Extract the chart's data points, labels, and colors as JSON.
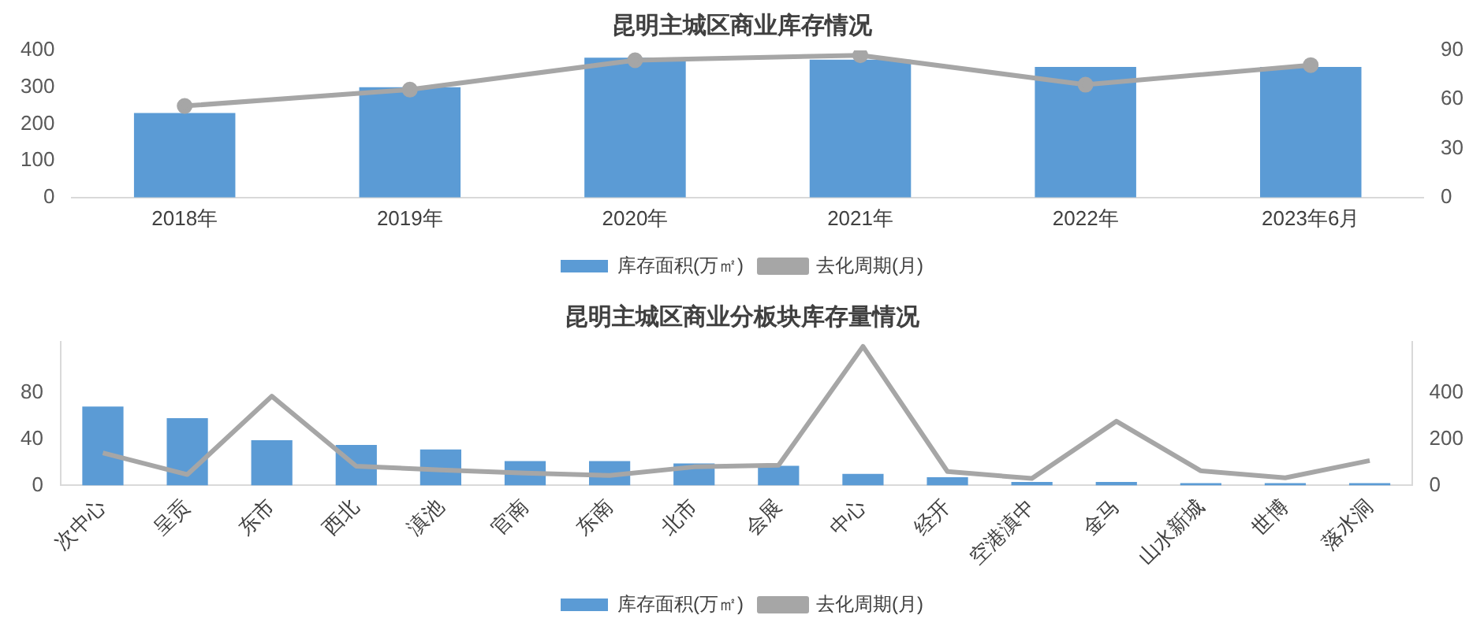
{
  "chart_data": [
    {
      "type": "bar",
      "title": "昆明主城区商业库存情况",
      "categories": [
        "2018年",
        "2019年",
        "2020年",
        "2021年",
        "2022年",
        "2023年6月"
      ],
      "ylim": [
        0,
        400
      ],
      "yticks": [
        0,
        100,
        200,
        300,
        400
      ],
      "y2lim": [
        0,
        90
      ],
      "y2ticks": [
        0,
        30,
        60,
        90
      ],
      "legend": "bottom",
      "grid": false,
      "series": [
        {
          "name": "库存面积(万㎡)",
          "color": "#5b9bd5",
          "values": [
            230,
            300,
            380,
            375,
            355,
            355
          ]
        },
        {
          "name": "去化周期(月)",
          "type": "line",
          "axis": "y2",
          "color": "#a6a6a6",
          "marker": "circle",
          "values": [
            56,
            66,
            84,
            87,
            69,
            81
          ]
        }
      ]
    },
    {
      "type": "bar",
      "title": "昆明主城区商业分板块库存量情况",
      "categories": [
        "次中心",
        "呈贡",
        "东市",
        "西北",
        "滇池",
        "官南",
        "东南",
        "北市",
        "会展",
        "中心",
        "经开",
        "空港滇中",
        "金马",
        "山水新城",
        "世博",
        "落水洞"
      ],
      "ylim": [
        0,
        124
      ],
      "yticks": [
        0,
        40,
        80
      ],
      "y2lim": [
        0,
        620
      ],
      "y2ticks": [
        0,
        200,
        400
      ],
      "legend": "bottom",
      "grid": false,
      "series": [
        {
          "name": "库存面积(万㎡)",
          "color": "#5b9bd5",
          "values": [
            68,
            58,
            39,
            35,
            31,
            21,
            21,
            19,
            17,
            10,
            7,
            3,
            3,
            2,
            2,
            2
          ]
        },
        {
          "name": "去化周期(月)",
          "type": "line",
          "axis": "y2",
          "color": "#a6a6a6",
          "marker": "none",
          "values": [
            140,
            47,
            385,
            83,
            67,
            53,
            43,
            80,
            87,
            600,
            60,
            30,
            277,
            63,
            33,
            107
          ]
        }
      ]
    }
  ]
}
